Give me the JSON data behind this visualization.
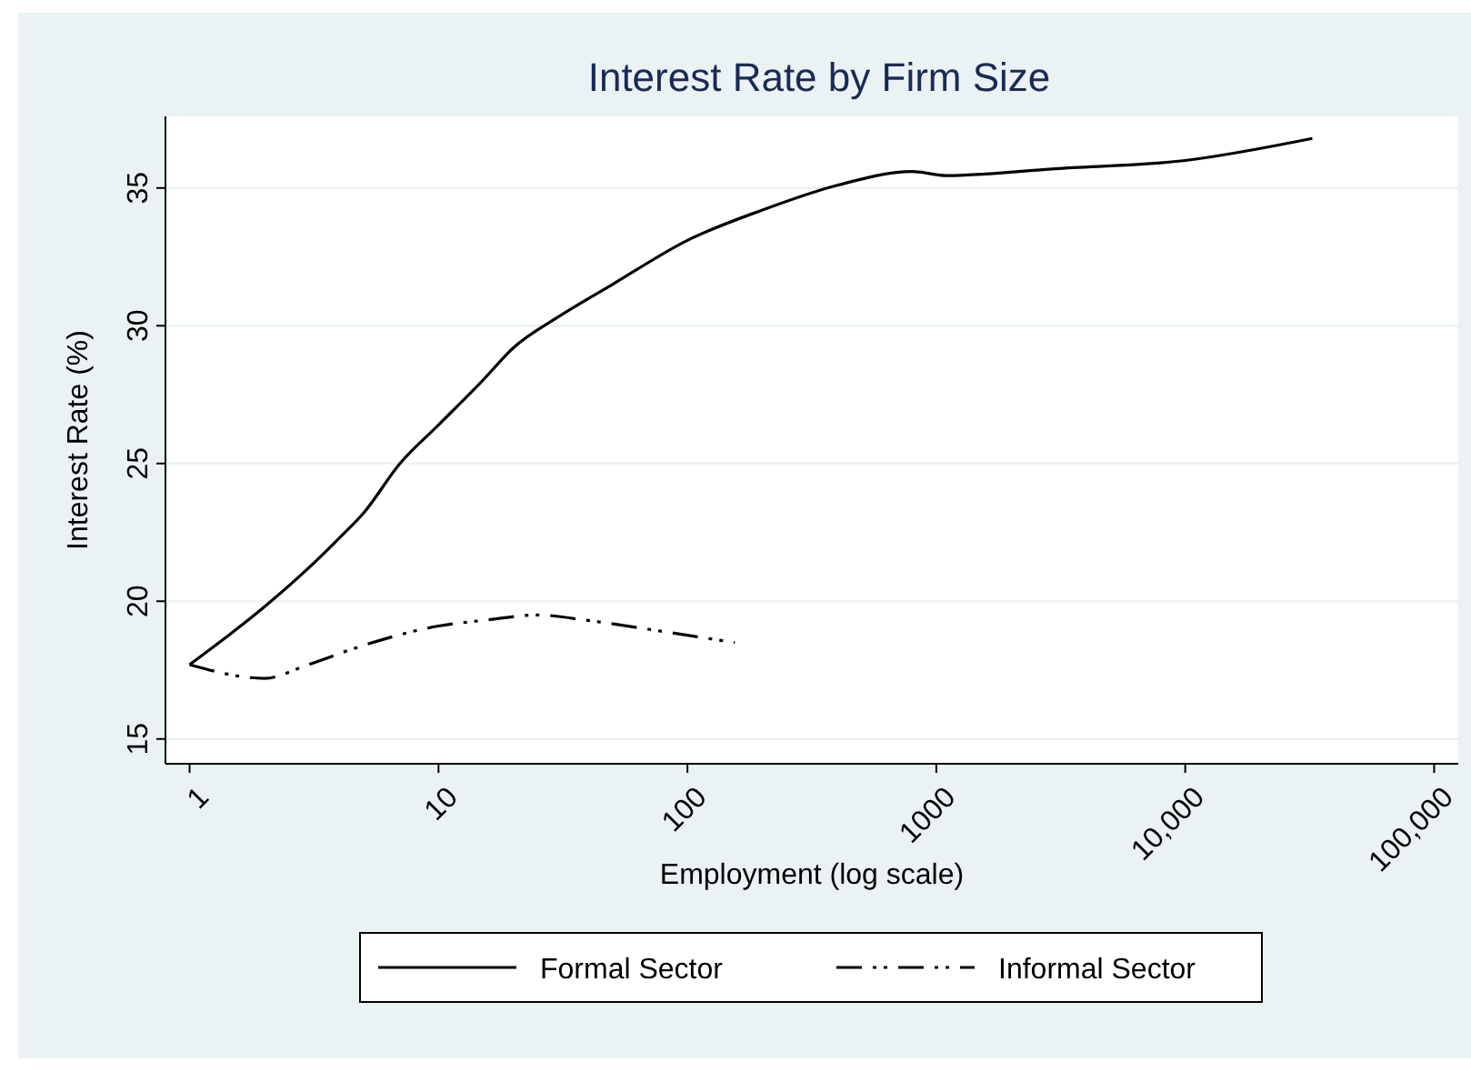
{
  "chart_data": {
    "type": "line",
    "title": "Interest Rate by Firm Size",
    "xlabel": "Employment (log scale)",
    "ylabel": "Interest Rate (%)",
    "log": "x",
    "xlim": [
      0.8,
      125000
    ],
    "xticks": [
      1,
      10,
      100,
      1000,
      {
        "value": 10000,
        "label": "10,000"
      },
      {
        "value": 100000,
        "label": "100,000"
      }
    ],
    "ylim": [
      14.1,
      37.6
    ],
    "yticks": [
      15,
      20,
      25,
      30,
      35
    ],
    "grid": "y",
    "legend": "bottom",
    "series": [
      {
        "name": "Formal Sector",
        "color": "#000000",
        "line_style": "solid",
        "x": [
          1,
          2,
          3,
          4,
          5,
          7,
          10,
          15,
          20,
          30,
          50,
          100,
          200,
          400,
          800,
          1100,
          3000,
          10000,
          32400
        ],
        "values": [
          17.7,
          19.8,
          21.2,
          22.3,
          23.2,
          25,
          26.4,
          28,
          29.2,
          30.3,
          31.5,
          33.1,
          34.2,
          35.1,
          35.6,
          35.45,
          35.7,
          36,
          36.8
        ]
      },
      {
        "name": "Informal Sector",
        "color": "#000000",
        "line_style": "dashed",
        "x": [
          1,
          2,
          3,
          5,
          10,
          15,
          25,
          40,
          80,
          155
        ],
        "values": [
          17.7,
          17.2,
          17.7,
          18.4,
          19.1,
          19.3,
          19.5,
          19.3,
          18.9,
          18.5
        ]
      }
    ]
  }
}
